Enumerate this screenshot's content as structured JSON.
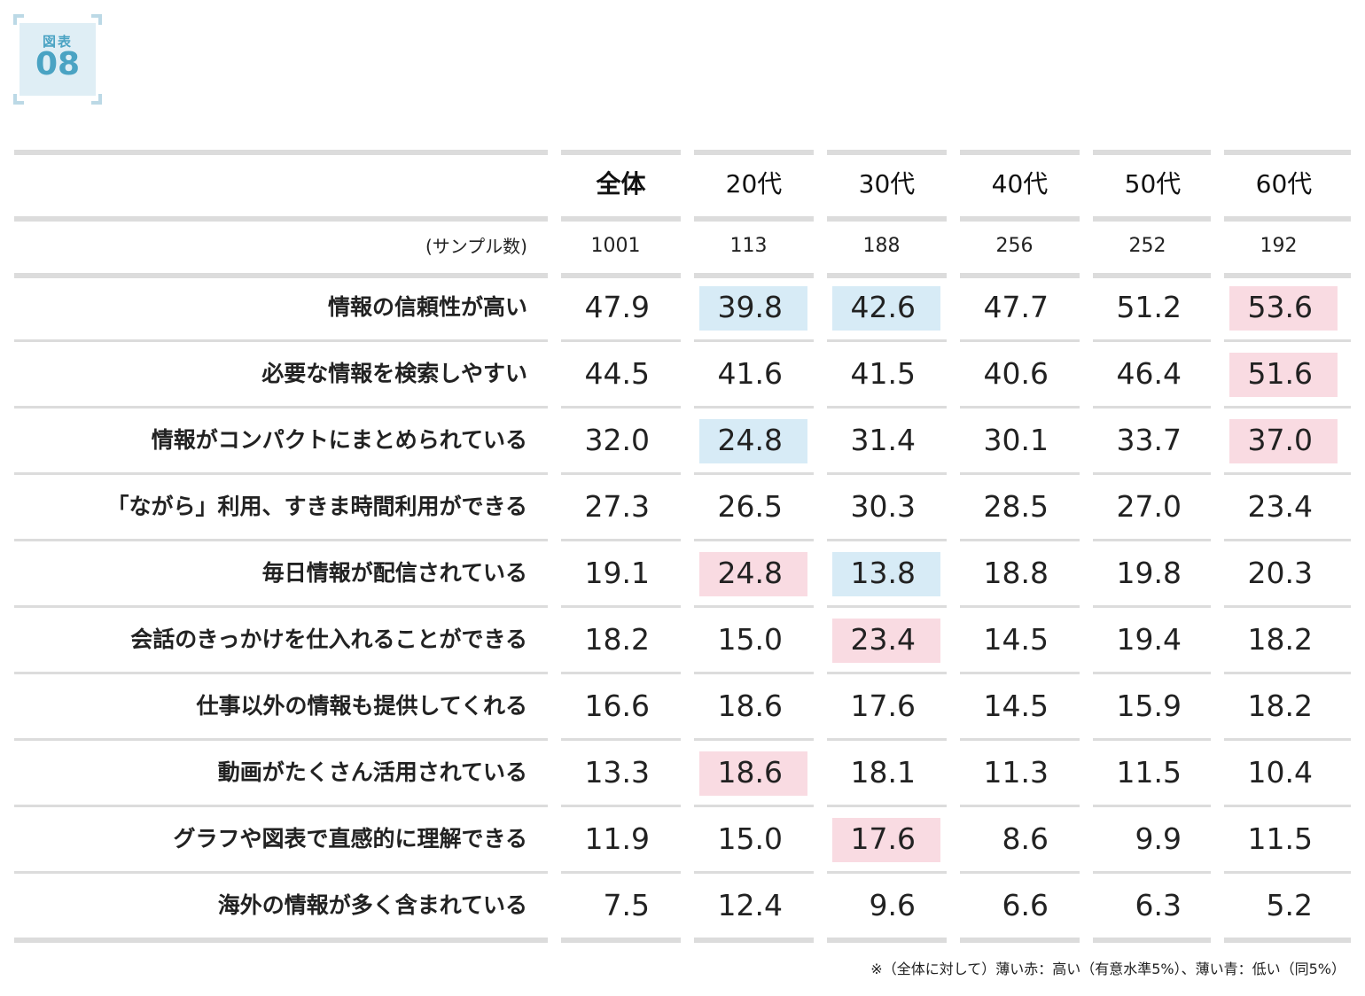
{
  "figure": {
    "label": "図表",
    "number": "08"
  },
  "chart_data": {
    "type": "table",
    "columns": [
      "全体",
      "20代",
      "30代",
      "40代",
      "50代",
      "60代"
    ],
    "sample_label": "(サンプル数)",
    "sample_sizes": [
      "1001",
      "113",
      "188",
      "256",
      "252",
      "192"
    ],
    "rows": [
      {
        "label": "情報の信頼性が高い",
        "values": [
          "47.9",
          "39.8",
          "42.6",
          "47.7",
          "51.2",
          "53.6"
        ],
        "marks": [
          "",
          "low",
          "low",
          "",
          "",
          "high"
        ]
      },
      {
        "label": "必要な情報を検索しやすい",
        "values": [
          "44.5",
          "41.6",
          "41.5",
          "40.6",
          "46.4",
          "51.6"
        ],
        "marks": [
          "",
          "",
          "",
          "",
          "",
          "high"
        ]
      },
      {
        "label": "情報がコンパクトにまとめられている",
        "values": [
          "32.0",
          "24.8",
          "31.4",
          "30.1",
          "33.7",
          "37.0"
        ],
        "marks": [
          "",
          "low",
          "",
          "",
          "",
          "high"
        ]
      },
      {
        "label": "「ながら」利用、すきま時間利用ができる",
        "values": [
          "27.3",
          "26.5",
          "30.3",
          "28.5",
          "27.0",
          "23.4"
        ],
        "marks": [
          "",
          "",
          "",
          "",
          "",
          ""
        ]
      },
      {
        "label": "毎日情報が配信されている",
        "values": [
          "19.1",
          "24.8",
          "13.8",
          "18.8",
          "19.8",
          "20.3"
        ],
        "marks": [
          "",
          "high",
          "low",
          "",
          "",
          ""
        ]
      },
      {
        "label": "会話のきっかけを仕入れることができる",
        "values": [
          "18.2",
          "15.0",
          "23.4",
          "14.5",
          "19.4",
          "18.2"
        ],
        "marks": [
          "",
          "",
          "high",
          "",
          "",
          ""
        ]
      },
      {
        "label": "仕事以外の情報も提供してくれる",
        "values": [
          "16.6",
          "18.6",
          "17.6",
          "14.5",
          "15.9",
          "18.2"
        ],
        "marks": [
          "",
          "",
          "",
          "",
          "",
          ""
        ]
      },
      {
        "label": "動画がたくさん活用されている",
        "values": [
          "13.3",
          "18.6",
          "18.1",
          "11.3",
          "11.5",
          "10.4"
        ],
        "marks": [
          "",
          "high",
          "",
          "",
          "",
          ""
        ]
      },
      {
        "label": "グラフや図表で直感的に理解できる",
        "values": [
          "11.9",
          "15.0",
          "17.6",
          "8.6",
          "9.9",
          "11.5"
        ],
        "marks": [
          "",
          "",
          "high",
          "",
          "",
          ""
        ]
      },
      {
        "label": "海外の情報が多く含まれている",
        "values": [
          "7.5",
          "12.4",
          "9.6",
          "6.6",
          "6.3",
          "5.2"
        ],
        "marks": [
          "",
          "",
          "",
          "",
          "",
          ""
        ]
      }
    ],
    "colors": {
      "high": "#f9dbe2",
      "low": "#d7ebf6",
      "rule": "#dcdcdc"
    },
    "note": "※（全体に対して）薄い赤：高い（有意水準5%）、薄い青：低い（同5%）"
  }
}
